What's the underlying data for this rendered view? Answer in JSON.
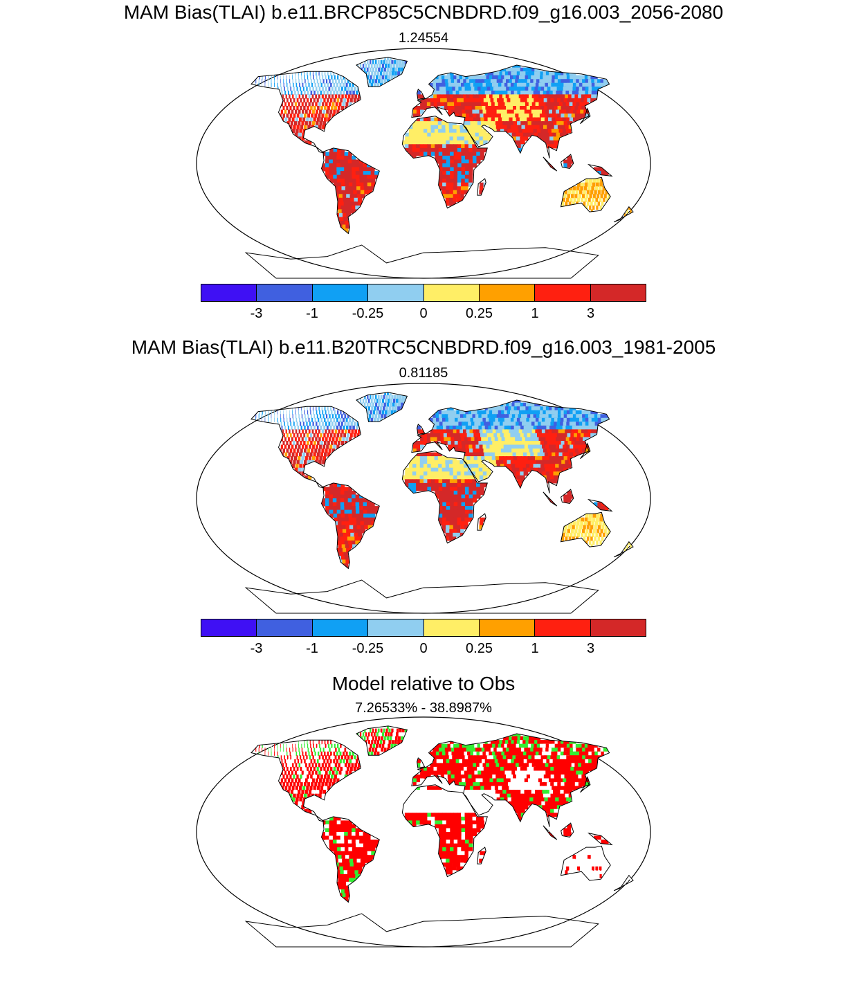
{
  "panels": [
    {
      "title": "MAM Bias(TLAI) b.e11.BRCP85C5CNBDRD.f09_g16.003_2056-2080",
      "subtitle": "1.24554",
      "palette": "bias",
      "variant": 0
    },
    {
      "title": "MAM Bias(TLAI) b.e11.B20TRC5CNBDRD.f09_g16.003_1981-2005",
      "subtitle": "0.81185",
      "palette": "bias",
      "variant": 1
    },
    {
      "title": "Model relative to Obs",
      "subtitle": "7.26533% - 38.8987%",
      "palette": "relative",
      "variant": 2
    }
  ],
  "colorbar": {
    "colors": [
      "#3f10f4",
      "#4060e0",
      "#10a0f4",
      "#90cef0",
      "#ffee66",
      "#ffa000",
      "#ff2010",
      "#d42828"
    ],
    "tick_labels": [
      "-3",
      "-1",
      "-0.25",
      "0",
      "0.25",
      "1",
      "3"
    ]
  },
  "relative_colors": [
    "#ff0000",
    "#33ee33",
    "#ffffff"
  ]
}
